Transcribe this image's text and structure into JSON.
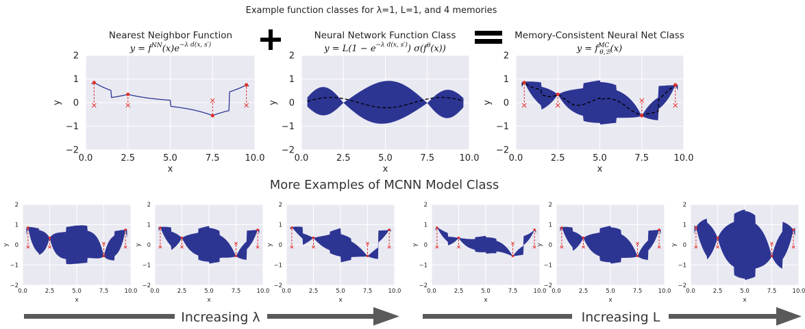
{
  "figure": {
    "title": "Example function classes for λ=1, L=1, and 4 memories",
    "section_title": "More Examples of MCNN Model Class",
    "operators": {
      "plus": "+",
      "equals": "="
    },
    "arrow_labels": {
      "lambda": "Increasing λ",
      "L": "Increasing L"
    }
  },
  "colors": {
    "band": "#2d3593",
    "axes_bg": "#e9e9f2",
    "grid": "#ffffff",
    "memory_point": "#e0312a",
    "dashed_line": "#e0312a",
    "mean_line": "#000000",
    "arrow": "#5a5a5a"
  },
  "chart_data": [
    {
      "id": "nn",
      "type": "line",
      "title": "Nearest Neighbor Function",
      "formula": "y = fNN(x)e−λ d(x, s′)",
      "xlabel": "x",
      "ylabel": "y",
      "xlim": [
        0,
        10
      ],
      "ylim": [
        -2,
        2
      ],
      "xticks": [
        "0.0",
        "2.5",
        "5.0",
        "7.5",
        "10.0"
      ],
      "yticks": [
        "−2",
        "−1",
        "0",
        "1",
        "2"
      ],
      "grid": true,
      "memories": [
        {
          "x": 0.5,
          "y": 0.85
        },
        {
          "x": 2.5,
          "y": 0.35
        },
        {
          "x": 7.5,
          "y": -0.55
        },
        {
          "x": 9.5,
          "y": 0.75
        }
      ]
    },
    {
      "id": "nnet",
      "type": "area",
      "title": "Neural Network Function Class",
      "formula": "y = L(1 − e−λ d(x, s′)) σ(fθ(x))",
      "xlabel": "x",
      "ylabel": "y",
      "xlim": [
        0,
        10
      ],
      "ylim": [
        -2,
        2
      ],
      "xticks": [
        "0.0",
        "2.5",
        "5.0",
        "7.5",
        "10.0"
      ],
      "yticks": [
        "−2",
        "−1",
        "0",
        "1",
        "2"
      ],
      "grid": true,
      "memories": []
    },
    {
      "id": "mcnn",
      "type": "area",
      "title": "Memory-Consistent Neural Net Class",
      "formula": "y = fMCθ,ℬ(x)",
      "xlabel": "x",
      "ylabel": "y",
      "xlim": [
        0,
        10
      ],
      "ylim": [
        -2,
        2
      ],
      "xticks": [
        "0.0",
        "2.5",
        "5.0",
        "7.5",
        "10.0"
      ],
      "yticks": [
        "−2",
        "−1",
        "0",
        "1",
        "2"
      ],
      "grid": true,
      "memories": [
        {
          "x": 0.5,
          "y": 0.85
        },
        {
          "x": 2.5,
          "y": 0.35
        },
        {
          "x": 7.5,
          "y": -0.55
        },
        {
          "x": 9.5,
          "y": 0.75
        }
      ]
    },
    {
      "id": "lam1",
      "type": "area",
      "xlabel": "x",
      "ylabel": "y",
      "xlim": [
        0,
        10
      ],
      "ylim": [
        -2,
        2
      ],
      "xticks": [
        "0.0",
        "2.5",
        "5.0",
        "7.5",
        "10.0"
      ],
      "yticks": [
        "−2",
        "−1",
        "0",
        "1",
        "2"
      ],
      "grid": true,
      "memories": [
        {
          "x": 0.5,
          "y": 0.85
        },
        {
          "x": 2.5,
          "y": 0.35
        },
        {
          "x": 7.5,
          "y": -0.55
        },
        {
          "x": 9.5,
          "y": 0.75
        }
      ]
    },
    {
      "id": "lam2",
      "type": "area",
      "xlabel": "x",
      "ylabel": "y",
      "xlim": [
        0,
        10
      ],
      "ylim": [
        -2,
        2
      ],
      "xticks": [
        "0.0",
        "2.5",
        "5.0",
        "7.5",
        "10.0"
      ],
      "yticks": [
        "−2",
        "−1",
        "0",
        "1",
        "2"
      ],
      "grid": true,
      "memories": [
        {
          "x": 0.5,
          "y": 0.85
        },
        {
          "x": 2.5,
          "y": 0.35
        },
        {
          "x": 7.5,
          "y": -0.55
        },
        {
          "x": 9.5,
          "y": 0.75
        }
      ]
    },
    {
      "id": "lam3",
      "type": "area",
      "xlabel": "x",
      "ylabel": "y",
      "xlim": [
        0,
        10
      ],
      "ylim": [
        -2,
        2
      ],
      "xticks": [
        "0.0",
        "2.5",
        "5.0",
        "7.5",
        "10.0"
      ],
      "yticks": [
        "−2",
        "−1",
        "0",
        "1",
        "2"
      ],
      "grid": true,
      "memories": [
        {
          "x": 0.5,
          "y": 0.85
        },
        {
          "x": 2.5,
          "y": 0.35
        },
        {
          "x": 7.5,
          "y": -0.55
        },
        {
          "x": 9.5,
          "y": 0.75
        }
      ]
    },
    {
      "id": "L1",
      "type": "area",
      "xlabel": "x",
      "ylabel": "y",
      "xlim": [
        0,
        10
      ],
      "ylim": [
        -2,
        2
      ],
      "xticks": [
        "0.0",
        "2.5",
        "5.0",
        "7.5",
        "10.0"
      ],
      "yticks": [
        "−2",
        "−1",
        "0",
        "1",
        "2"
      ],
      "grid": true,
      "memories": [
        {
          "x": 0.5,
          "y": 0.85
        },
        {
          "x": 2.5,
          "y": 0.35
        },
        {
          "x": 7.5,
          "y": -0.55
        },
        {
          "x": 9.5,
          "y": 0.75
        }
      ]
    },
    {
      "id": "L2",
      "type": "area",
      "xlabel": "x",
      "ylabel": "y",
      "xlim": [
        0,
        10
      ],
      "ylim": [
        -2,
        2
      ],
      "xticks": [
        "0.0",
        "2.5",
        "5.0",
        "7.5",
        "10.0"
      ],
      "yticks": [
        "−2",
        "−1",
        "0",
        "1",
        "2"
      ],
      "grid": true,
      "memories": [
        {
          "x": 0.5,
          "y": 0.85
        },
        {
          "x": 2.5,
          "y": 0.35
        },
        {
          "x": 7.5,
          "y": -0.55
        },
        {
          "x": 9.5,
          "y": 0.75
        }
      ]
    },
    {
      "id": "L3",
      "type": "area",
      "xlabel": "x",
      "ylabel": "y",
      "xlim": [
        0,
        10
      ],
      "ylim": [
        -2,
        2
      ],
      "xticks": [
        "0.0",
        "2.5",
        "5.0",
        "7.5",
        "10.0"
      ],
      "yticks": [
        "−2",
        "−1",
        "0",
        "1",
        "2"
      ],
      "grid": true,
      "memories": [
        {
          "x": 0.5,
          "y": 0.85
        },
        {
          "x": 2.5,
          "y": 0.35
        },
        {
          "x": 7.5,
          "y": -0.55
        },
        {
          "x": 9.5,
          "y": 0.75
        }
      ]
    }
  ]
}
